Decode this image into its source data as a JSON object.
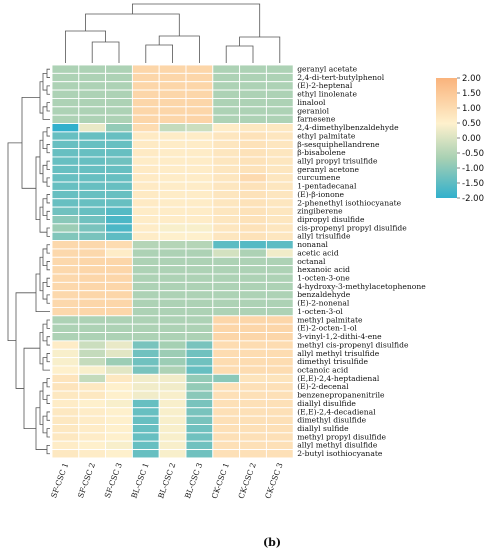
{
  "chart_data": {
    "type": "heatmap",
    "caption": "(b)",
    "columns": [
      "SF-CSC 1",
      "SF-CSC 2",
      "SF-CSC 3",
      "BL-CSC 1",
      "BL-CSC 2",
      "BL-CSC 3",
      "CK-CSC 1",
      "CK-CSC 2",
      "CK-CSC 3"
    ],
    "rows": [
      "geranyl acetate",
      "2,4-di-tert-butylphenol",
      "(E)-2-heptenal",
      "ethyl linolenate",
      "linalool",
      "geraniol",
      "farnesene",
      "2,4-dimethylbenzaldehyde",
      "ethyl palmitate",
      "β-sesquiphellandrene",
      "β-bisabolene",
      "allyl propyl trisulfide",
      "geranyl acetone",
      "curcumene",
      "1-pentadecanal",
      "(E)-β-ionone",
      "2-phenethyl isothiocyanate",
      "zingiberene",
      "dipropyl disulfide",
      "cis-propenyl propyl disulfide",
      "allyl trisulfide",
      "nonanal",
      "acetic acid",
      "octanal",
      "hexanoic acid",
      "1-octen-3-one",
      "4-hydroxy-3-methylacetophenone",
      "benzaldehyde",
      "(E)-2-nonenal",
      "1-octen-3-ol",
      "methyl palmitate",
      "(E)-2-octen-1-ol",
      "3-vinyl-1,2-dithi-4-ene",
      "methyl cis-propenyl disulfide",
      "allyl methyl trisulfide",
      "dimethyl trisulfide",
      "octanoic acid",
      "(E,E)-2,4-heptadienal",
      "(E)-2-decenal",
      "benzenepropanenitrile",
      "diallyl disulfide",
      "(E,E)-2,4-decadienal",
      "dimethyl disulfide",
      "diallyl sulfide",
      "methyl propyl disulfide",
      "allyl methyl disulfide",
      "2-butyl isothiocyanate"
    ],
    "values": [
      [
        -0.6,
        -0.6,
        -0.6,
        1.15,
        1.15,
        1.15,
        -0.6,
        -0.6,
        -0.6
      ],
      [
        -0.6,
        -0.6,
        -0.6,
        1.15,
        1.15,
        1.15,
        -0.6,
        -0.6,
        -0.6
      ],
      [
        -0.6,
        -0.6,
        -0.6,
        1.15,
        1.15,
        1.15,
        -0.6,
        -0.6,
        -0.6
      ],
      [
        -0.6,
        -0.6,
        -0.6,
        1.15,
        1.15,
        1.15,
        -0.6,
        -0.6,
        -0.6
      ],
      [
        -0.6,
        -0.6,
        -0.6,
        1.15,
        1.15,
        1.15,
        -0.6,
        -0.6,
        -0.6
      ],
      [
        -0.6,
        -0.6,
        -0.6,
        1.15,
        1.15,
        1.15,
        -0.6,
        -0.6,
        -0.6
      ],
      [
        -0.6,
        -0.6,
        -0.6,
        1.15,
        1.15,
        1.2,
        -0.6,
        -0.6,
        -0.6
      ],
      [
        -2.0,
        0.2,
        -0.9,
        1.0,
        -0.3,
        -0.2,
        0.6,
        0.7,
        0.7
      ],
      [
        -1.4,
        -1.4,
        -1.4,
        0.65,
        0.6,
        0.6,
        0.75,
        0.85,
        0.75
      ],
      [
        -1.4,
        -1.4,
        -1.4,
        0.65,
        0.6,
        0.6,
        0.75,
        0.85,
        0.75
      ],
      [
        -1.4,
        -1.4,
        -1.4,
        0.65,
        0.6,
        0.6,
        0.75,
        0.85,
        0.75
      ],
      [
        -1.4,
        -1.4,
        -1.3,
        0.6,
        0.6,
        0.6,
        0.75,
        0.85,
        0.75
      ],
      [
        -1.4,
        -1.4,
        -1.4,
        0.65,
        0.6,
        0.6,
        0.75,
        0.85,
        0.75
      ],
      [
        -1.4,
        -1.4,
        -1.4,
        0.65,
        0.6,
        0.6,
        0.75,
        1.05,
        0.75
      ],
      [
        -1.4,
        -1.4,
        -1.4,
        0.65,
        0.6,
        0.6,
        0.75,
        0.85,
        0.75
      ],
      [
        -1.4,
        -1.4,
        -1.4,
        0.65,
        0.6,
        0.6,
        0.75,
        0.85,
        0.75
      ],
      [
        -1.4,
        -1.4,
        -1.4,
        0.65,
        0.6,
        0.6,
        0.75,
        0.85,
        0.75
      ],
      [
        -1.3,
        -1.4,
        -1.6,
        0.6,
        0.6,
        0.6,
        0.75,
        0.85,
        0.75
      ],
      [
        -1.0,
        -1.3,
        -1.7,
        0.6,
        0.6,
        0.6,
        0.75,
        0.85,
        0.75
      ],
      [
        -0.8,
        -1.2,
        -1.7,
        0.6,
        0.4,
        0.4,
        0.75,
        0.85,
        0.75
      ],
      [
        -1.1,
        -1.2,
        -1.5,
        0.6,
        0.5,
        0.5,
        0.75,
        0.85,
        0.75
      ],
      [
        1.1,
        1.1,
        1.0,
        -0.5,
        -0.5,
        -0.5,
        -1.5,
        -1.6,
        -1.5
      ],
      [
        1.1,
        1.1,
        0.6,
        -0.6,
        -0.6,
        -0.6,
        -0.1,
        -0.6,
        0.3
      ],
      [
        1.1,
        1.15,
        1.15,
        -0.6,
        -0.6,
        -0.6,
        -0.6,
        -0.6,
        -0.6
      ],
      [
        1.1,
        1.15,
        1.15,
        -0.6,
        -0.6,
        -0.6,
        -0.6,
        -0.6,
        -0.6
      ],
      [
        1.1,
        1.15,
        1.15,
        -0.6,
        -0.6,
        -0.6,
        -0.6,
        -0.6,
        -0.6
      ],
      [
        1.1,
        1.15,
        1.15,
        -0.6,
        -0.6,
        -0.6,
        -0.6,
        -0.6,
        -0.6
      ],
      [
        1.1,
        1.15,
        1.15,
        -0.6,
        -0.6,
        -0.6,
        -0.6,
        -0.6,
        -0.6
      ],
      [
        1.1,
        1.15,
        1.15,
        -0.6,
        -0.6,
        -0.6,
        -0.6,
        -0.6,
        -0.6
      ],
      [
        1.1,
        1.15,
        1.15,
        -0.6,
        -0.6,
        -0.6,
        -0.6,
        -0.6,
        -0.6
      ],
      [
        -0.6,
        -0.6,
        -0.6,
        -0.6,
        -0.6,
        -0.6,
        1.15,
        1.15,
        1.15
      ],
      [
        -0.6,
        -0.6,
        -0.6,
        -0.6,
        -0.6,
        -0.6,
        1.15,
        1.15,
        1.15
      ],
      [
        -0.6,
        -0.6,
        -0.6,
        -0.6,
        -0.6,
        -0.6,
        1.15,
        1.15,
        1.15
      ],
      [
        0.6,
        -0.2,
        0.2,
        -1.2,
        -0.7,
        -1.2,
        1.0,
        1.0,
        1.0
      ],
      [
        0.4,
        -0.3,
        0.1,
        -1.3,
        -0.8,
        -1.3,
        1.0,
        1.0,
        1.0
      ],
      [
        0.4,
        -0.3,
        -0.8,
        -1.3,
        -0.8,
        -1.3,
        1.0,
        1.0,
        1.0
      ],
      [
        0.5,
        0.4,
        0.1,
        -1.2,
        -0.6,
        -1.4,
        1.0,
        1.0,
        1.0
      ],
      [
        0.8,
        -0.3,
        0.7,
        0.3,
        0.3,
        -0.9,
        -1.0,
        0.8,
        0.8
      ],
      [
        0.8,
        0.7,
        0.5,
        0.3,
        0.3,
        -0.9,
        0.9,
        0.9,
        0.9
      ],
      [
        0.7,
        0.7,
        0.5,
        0.3,
        0.4,
        -1.0,
        0.9,
        0.9,
        0.9
      ],
      [
        0.6,
        0.5,
        0.4,
        -1.4,
        0.4,
        -1.2,
        0.9,
        0.9,
        0.9
      ],
      [
        0.7,
        0.6,
        0.5,
        -1.4,
        0.4,
        -1.2,
        0.9,
        0.9,
        0.9
      ],
      [
        0.7,
        0.6,
        0.5,
        -1.4,
        0.4,
        -1.2,
        0.9,
        0.9,
        0.9
      ],
      [
        0.7,
        0.6,
        0.5,
        -1.4,
        0.4,
        -1.3,
        0.9,
        0.9,
        0.9
      ],
      [
        0.7,
        0.6,
        0.5,
        -1.4,
        0.4,
        -1.3,
        0.9,
        0.9,
        0.9
      ],
      [
        0.6,
        0.5,
        0.4,
        -1.4,
        0.4,
        -1.3,
        0.9,
        0.9,
        0.9
      ],
      [
        0.7,
        0.6,
        0.5,
        -1.4,
        0.4,
        -1.3,
        0.9,
        0.9,
        0.9
      ]
    ],
    "colorbar": {
      "ticks": [
        "2.00",
        "1.50",
        "1.00",
        "0.50",
        "0.00",
        "-0.50",
        "-1.00",
        "-1.50",
        "-2.00"
      ],
      "range": [
        -2.0,
        2.0
      ],
      "colors": [
        "#31b0cc",
        "#a7d0b3",
        "#fef1cd",
        "#fab37c"
      ]
    },
    "row_groups": [
      7,
      14,
      9,
      7,
      10
    ],
    "column_dendrogram": "((SF-CSC 1,(SF-CSC 2,SF-CSC 3)),((BL-CSC 1,BL-CSC 2),BL-CSC 3)),((CK-CSC 1,CK-CSC 2),CK-CSC 3)"
  }
}
